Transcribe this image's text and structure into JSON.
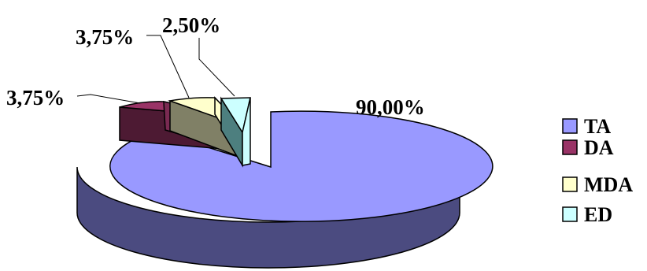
{
  "chart_data": {
    "type": "pie",
    "categories": [
      "TA",
      "DA",
      "MDA",
      "ED"
    ],
    "values": [
      90.0,
      3.75,
      3.75,
      2.5
    ],
    "data_labels": [
      "90,00%",
      "3,75%",
      "3,75%",
      "2,50%"
    ],
    "colors": {
      "TA": "#9999ff",
      "DA": "#993366",
      "MDA": "#ffffcc",
      "ED": "#ccffff"
    },
    "style": "3d-exploded",
    "legend_position": "right",
    "title": "",
    "xlabel": "",
    "ylabel": ""
  }
}
